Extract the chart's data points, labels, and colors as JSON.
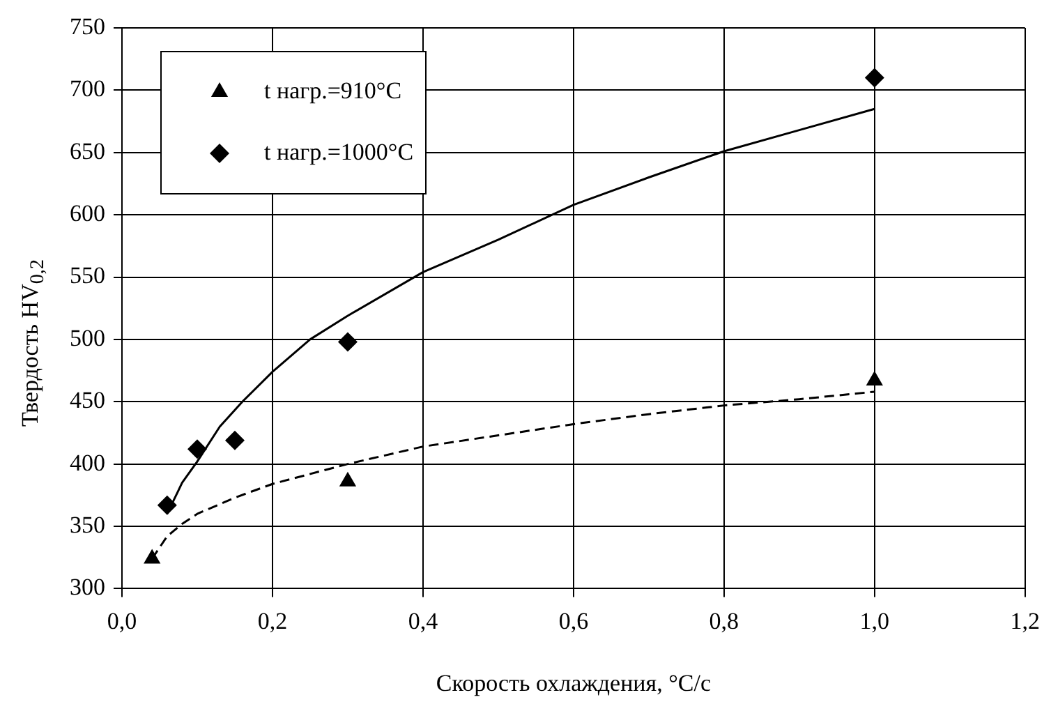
{
  "chart_data": {
    "type": "scatter",
    "xlabel": "Скорость охлаждения, °С/с",
    "ylabel": "Твердость HV$_{0,2}$",
    "xlim": [
      0,
      1.2
    ],
    "xticks": [
      {
        "value": 0,
        "label": "0,0"
      },
      {
        "value": 0.2,
        "label": "0,2"
      },
      {
        "value": 0.4,
        "label": "0,4"
      },
      {
        "value": 0.6,
        "label": "0,6"
      },
      {
        "value": 0.8,
        "label": "0,8"
      },
      {
        "value": 1,
        "label": "1,0"
      },
      {
        "value": 1.2,
        "label": "1,2"
      }
    ],
    "ylim": [
      300,
      750
    ],
    "yticks": [
      300,
      350,
      400,
      450,
      500,
      550,
      600,
      650,
      700,
      750
    ],
    "grid": true,
    "legend": "top left",
    "series": [
      {
        "name": "t нагр.=910°С",
        "color": "#000000",
        "marker": "triangle",
        "x": [
          0.04,
          0.3,
          1.0
        ],
        "values": [
          324,
          386,
          467
        ]
      },
      {
        "name": "t нагр.=1000°С",
        "color": "#000000",
        "marker": "diamond",
        "x": [
          0.06,
          0.1,
          0.15,
          0.3,
          1.0
        ],
        "values": [
          367,
          412,
          419,
          498,
          710
        ]
      },
      {
        "type": "line",
        "color": "#000000",
        "line_style": "dashed",
        "marker": "none",
        "x": [
          0.04,
          0.06,
          0.08,
          0.1,
          0.15,
          0.2,
          0.3,
          0.4,
          0.5,
          0.6,
          0.7,
          0.8,
          0.9,
          1.0
        ],
        "values": [
          324,
          342,
          352,
          360,
          373,
          384,
          400,
          414,
          423,
          432,
          440,
          447,
          452,
          458
        ]
      },
      {
        "type": "line",
        "color": "#000000",
        "line_style": "solid",
        "marker": "none",
        "x": [
          0.06,
          0.08,
          0.1,
          0.13,
          0.16,
          0.2,
          0.25,
          0.3,
          0.4,
          0.5,
          0.6,
          0.7,
          0.8,
          0.9,
          1.0
        ],
        "values": [
          360,
          385,
          402,
          430,
          450,
          474,
          500,
          519,
          554,
          580,
          608,
          630,
          651,
          668,
          685
        ]
      }
    ]
  }
}
